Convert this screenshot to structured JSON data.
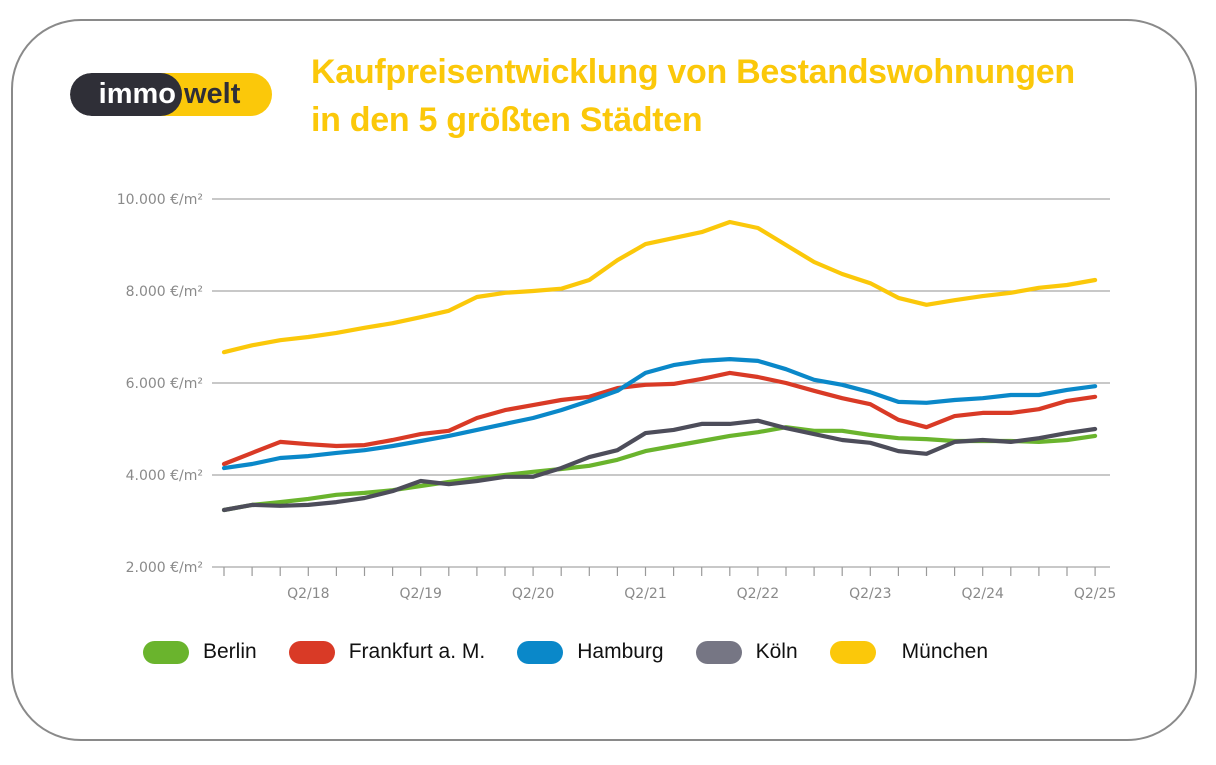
{
  "logo": {
    "part1": "immo",
    "part2": "welt"
  },
  "title": {
    "line1": "Kaufpreisentwicklung von Bestandswohnungen",
    "line2": "in den 5 größten Städten"
  },
  "chart_data": {
    "type": "line",
    "title": "Kaufpreisentwicklung von Bestandswohnungen in den 5 größten Städten",
    "xlabel": "",
    "ylabel": "",
    "ylim": [
      2000,
      10000
    ],
    "yticks": [
      10000,
      8000,
      6000,
      4000,
      2000
    ],
    "ytick_labels": [
      "10.000 €/m²",
      "8.000 €/m²",
      "6.000 €/m²",
      "4.000 €/m²",
      "2.000 €/m²"
    ],
    "grid": "horizontal",
    "legend_position": "bottom",
    "x": [
      "Q3/17",
      "Q4/17",
      "Q1/18",
      "Q2/18",
      "Q3/18",
      "Q4/18",
      "Q1/19",
      "Q2/19",
      "Q3/19",
      "Q4/19",
      "Q1/20",
      "Q2/20",
      "Q3/20",
      "Q4/20",
      "Q1/21",
      "Q2/21",
      "Q3/21",
      "Q4/21",
      "Q1/22",
      "Q2/22",
      "Q3/22",
      "Q4/22",
      "Q1/23",
      "Q2/23",
      "Q3/23",
      "Q4/23",
      "Q1/24",
      "Q2/24",
      "Q3/24",
      "Q4/24",
      "Q1/25",
      "Q2/25"
    ],
    "xtick_labels": [
      "Q2/18",
      "Q2/19",
      "Q2/20",
      "Q2/21",
      "Q2/22",
      "Q2/23",
      "Q2/24",
      "Q2/25"
    ],
    "series": [
      {
        "name": "Berlin",
        "color": "#6ab42d",
        "values": [
          3240,
          3350,
          3410,
          3480,
          3570,
          3610,
          3670,
          3760,
          3850,
          3930,
          4000,
          4070,
          4130,
          4200,
          4330,
          4520,
          4630,
          4740,
          4850,
          4930,
          5040,
          4960,
          4960,
          4870,
          4800,
          4780,
          4740,
          4740,
          4740,
          4720,
          4760,
          4850
        ]
      },
      {
        "name": "Frankfurt a. M.",
        "color": "#d93a26",
        "values": [
          4240,
          4480,
          4720,
          4670,
          4630,
          4650,
          4760,
          4890,
          4960,
          5240,
          5410,
          5520,
          5630,
          5700,
          5890,
          5960,
          5980,
          6090,
          6220,
          6130,
          6000,
          5830,
          5670,
          5540,
          5200,
          5040,
          5280,
          5350,
          5350,
          5430,
          5610,
          5700
        ]
      },
      {
        "name": "Hamburg",
        "color": "#0a88c9",
        "values": [
          4150,
          4240,
          4370,
          4410,
          4480,
          4540,
          4630,
          4740,
          4850,
          4980,
          5110,
          5240,
          5410,
          5610,
          5830,
          6220,
          6390,
          6480,
          6520,
          6480,
          6300,
          6070,
          5960,
          5800,
          5590,
          5570,
          5630,
          5670,
          5740,
          5740,
          5850,
          5930
        ]
      },
      {
        "name": "Köln",
        "color": "#4d4d5a",
        "values": [
          3240,
          3350,
          3330,
          3350,
          3410,
          3500,
          3650,
          3870,
          3800,
          3870,
          3960,
          3960,
          4150,
          4390,
          4540,
          4910,
          4980,
          5110,
          5110,
          5180,
          5020,
          4890,
          4760,
          4700,
          4520,
          4460,
          4720,
          4760,
          4720,
          4800,
          4910,
          5000
        ]
      },
      {
        "name": "München",
        "color": "#fbc80a",
        "values": [
          6670,
          6820,
          6930,
          7000,
          7090,
          7200,
          7300,
          7430,
          7570,
          7870,
          7960,
          8000,
          8050,
          8240,
          8670,
          9020,
          9150,
          9280,
          9500,
          9370,
          9000,
          8630,
          8370,
          8170,
          7850,
          7700,
          7800,
          7890,
          7960,
          8070,
          8130,
          8240
        ]
      }
    ]
  },
  "legend": [
    {
      "label": "Berlin",
      "color": "#6ab42d"
    },
    {
      "label": "Frankfurt a. M.",
      "color": "#d93a26"
    },
    {
      "label": "Hamburg",
      "color": "#0a88c9"
    },
    {
      "label": "Köln",
      "color": "#767684"
    },
    {
      "label": "München",
      "color": "#fbc80a"
    }
  ]
}
